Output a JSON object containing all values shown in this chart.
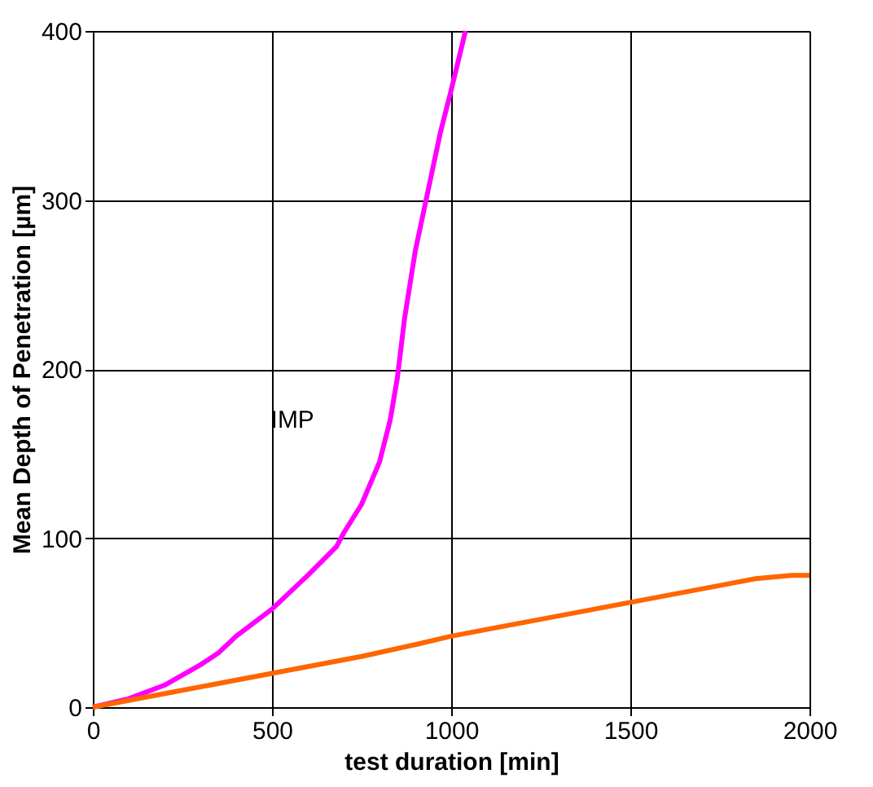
{
  "chart_data": {
    "type": "line",
    "xlabel": "test duration [min]",
    "ylabel": "Mean Depth of Penetration [µm]",
    "xlim": [
      0,
      2000
    ],
    "xticks": [
      0,
      500,
      1000,
      1500,
      2000
    ],
    "ylim": [
      0,
      400
    ],
    "yticks": [
      0,
      100,
      200,
      300,
      400
    ],
    "grid": true,
    "marker": "none",
    "line_style": "solid",
    "series": [
      {
        "name": "IMP",
        "color": "#ff00ff",
        "x": [
          0,
          100,
          200,
          300,
          350,
          400,
          500,
          600,
          680,
          700,
          750,
          800,
          830,
          850,
          870,
          900,
          930,
          970,
          1000,
          1040
        ],
        "values": [
          0,
          5,
          13,
          25,
          32,
          42,
          58,
          78,
          95,
          103,
          120,
          145,
          170,
          195,
          230,
          270,
          300,
          340,
          365,
          400
        ]
      },
      {
        "color": "#ff6600",
        "x": [
          0,
          250,
          500,
          750,
          900,
          1000,
          1250,
          1500,
          1750,
          1850,
          1950,
          2000
        ],
        "values": [
          0,
          10,
          20,
          30,
          37,
          42,
          52,
          62,
          72,
          76,
          78,
          78
        ]
      }
    ]
  }
}
